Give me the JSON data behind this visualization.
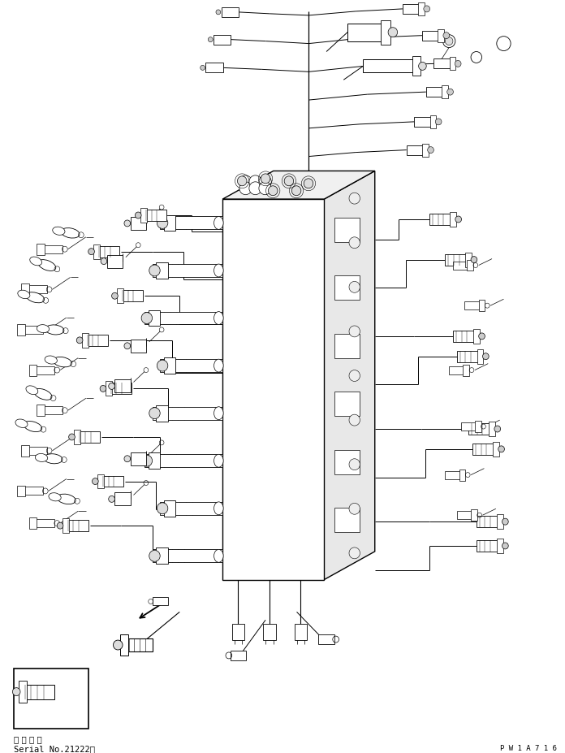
{
  "background_color": "#ffffff",
  "line_color": "#000000",
  "figure_width": 6.96,
  "figure_height": 9.28,
  "dpi": 100,
  "text_line1": "適 用 号 機",
  "text_line2": "Serial No.21222～",
  "page_id": "P W 1 A 7 1 6",
  "font_size_text": 7.5,
  "font_size_page": 6.5
}
